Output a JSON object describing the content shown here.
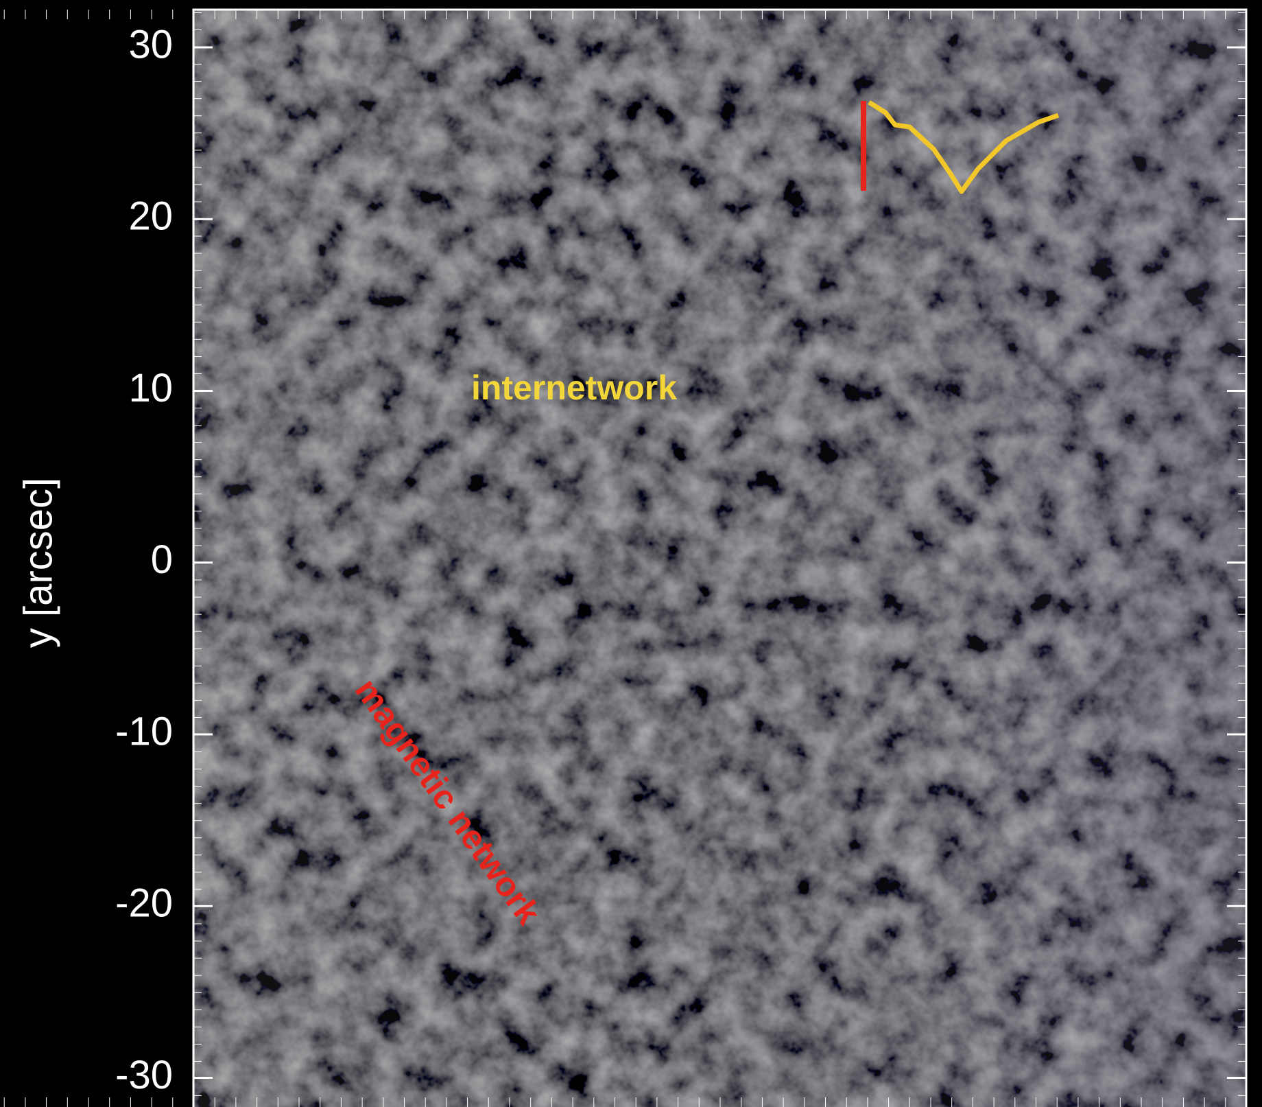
{
  "chart_data": {
    "type": "image",
    "ylabel": "y [arcsec]",
    "ylim": [
      -31.7,
      32.2
    ],
    "yticks": [
      30,
      20,
      10,
      0,
      -10,
      -20,
      -30
    ],
    "annotations": [
      {
        "text": "internetwork",
        "color": "#f2d63a"
      },
      {
        "text": "magnetic network",
        "color": "#e8231c"
      }
    ]
  }
}
